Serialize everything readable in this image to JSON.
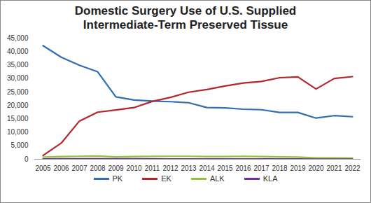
{
  "chart_data": {
    "type": "line",
    "title": "Domestic Surgery Use of U.S. Supplied Intermediate-Term Preserved Tissue",
    "categories": [
      "2005",
      "2006",
      "2007",
      "2008",
      "2009",
      "2010",
      "2011",
      "2012",
      "2013",
      "2014",
      "2015",
      "2016",
      "2017",
      "2018",
      "2019",
      "2020",
      "2021",
      "2022"
    ],
    "series": [
      {
        "name": "PK",
        "color": "#2f6db5",
        "values": [
          42200,
          37900,
          34900,
          32500,
          23200,
          22000,
          21600,
          21400,
          21000,
          19200,
          19100,
          18600,
          18400,
          17400,
          17400,
          15300,
          16200,
          15800
        ]
      },
      {
        "name": "EK",
        "color": "#b3262b",
        "values": [
          1400,
          6000,
          14200,
          17500,
          18300,
          19200,
          21500,
          23000,
          24900,
          25900,
          27200,
          28300,
          28900,
          30300,
          30600,
          26100,
          30000,
          30700
        ]
      },
      {
        "name": "ALK",
        "color": "#92c13e",
        "values": [
          800,
          1000,
          1100,
          1200,
          900,
          1000,
          1100,
          1100,
          1100,
          1000,
          1000,
          1100,
          1000,
          900,
          800,
          500,
          500,
          400
        ]
      },
      {
        "name": "KLA",
        "color": "#7030a0",
        "values": [
          100,
          150,
          200,
          200,
          150,
          150,
          150,
          100,
          100,
          100,
          100,
          100,
          100,
          100,
          100,
          50,
          50,
          50
        ]
      }
    ],
    "ylim": [
      0,
      45000
    ],
    "yticks": [
      0,
      {
        "value": 5000,
        "label": "5,000"
      },
      {
        "value": 10000,
        "label": "10,000"
      },
      {
        "value": 15000,
        "label": "15,000"
      },
      {
        "value": 20000,
        "label": "20,000"
      },
      {
        "value": 25000,
        "label": "25,000"
      },
      {
        "value": 30000,
        "label": "30,000"
      },
      {
        "value": 35000,
        "label": "35,000"
      },
      {
        "value": 40000,
        "label": "40,000"
      },
      {
        "value": 45000,
        "label": "45,000"
      }
    ],
    "grid": false,
    "legend": "bottom"
  }
}
